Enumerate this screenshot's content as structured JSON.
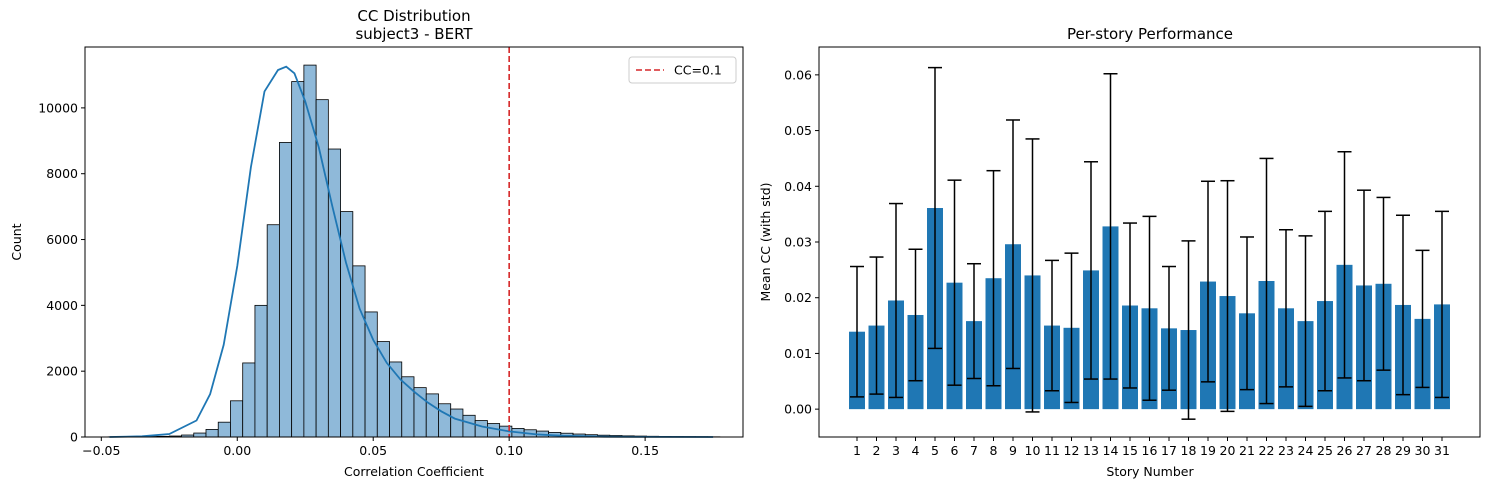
{
  "chart_data": [
    {
      "type": "bar",
      "subtype": "histogram",
      "title": "CC Distribution",
      "subtitle": "subject3 - BERT",
      "xlabel": "Correlation Coefficient",
      "ylabel": "Count",
      "xlim": [
        -0.056,
        0.186
      ],
      "ylim": [
        0,
        11850
      ],
      "xticks": [
        -0.05,
        0.0,
        0.05,
        0.1,
        0.15
      ],
      "xtick_labels": [
        "−0.05",
        "0.00",
        "0.05",
        "0.10",
        "0.15"
      ],
      "yticks": [
        0,
        2000,
        4000,
        6000,
        8000,
        10000
      ],
      "ytick_labels": [
        "0",
        "2000",
        "4000",
        "6000",
        "8000",
        "10000"
      ],
      "bin_start": -0.0475,
      "bin_width": 0.0045,
      "counts": [
        5,
        8,
        10,
        15,
        20,
        30,
        60,
        120,
        230,
        450,
        1100,
        2250,
        4000,
        6450,
        8950,
        10800,
        11300,
        10250,
        8750,
        6850,
        5200,
        3800,
        2900,
        2280,
        1830,
        1500,
        1310,
        1010,
        850,
        660,
        500,
        410,
        330,
        260,
        220,
        180,
        140,
        115,
        90,
        70,
        55,
        45,
        35,
        28,
        22,
        17,
        13,
        10,
        8,
        6
      ],
      "kde_x": [
        -0.047,
        -0.035,
        -0.025,
        -0.015,
        -0.01,
        -0.005,
        0.0,
        0.005,
        0.01,
        0.015,
        0.018,
        0.021,
        0.025,
        0.03,
        0.035,
        0.04,
        0.045,
        0.05,
        0.055,
        0.06,
        0.065,
        0.07,
        0.075,
        0.08,
        0.09,
        0.1,
        0.11,
        0.12,
        0.135,
        0.15,
        0.175
      ],
      "kde_y": [
        0,
        20,
        90,
        500,
        1300,
        2800,
        5200,
        8200,
        10500,
        11150,
        11250,
        11050,
        10200,
        8800,
        7000,
        5300,
        3900,
        2950,
        2250,
        1750,
        1380,
        1050,
        780,
        560,
        320,
        170,
        80,
        35,
        10,
        4,
        0
      ],
      "vline": {
        "x": 0.1,
        "label": "CC=0.1",
        "color": "#d62728"
      },
      "bar_color": "#8fb9d9",
      "kde_color": "#1f77b4",
      "legend_position": "top-right"
    },
    {
      "type": "bar",
      "title": "Per-story Performance",
      "xlabel": "Story Number",
      "ylabel": "Mean CC (with std)",
      "ylim": [
        -0.005,
        0.065
      ],
      "yticks": [
        0.0,
        0.01,
        0.02,
        0.03,
        0.04,
        0.05,
        0.06
      ],
      "ytick_labels": [
        "0.00",
        "0.01",
        "0.02",
        "0.03",
        "0.04",
        "0.05",
        "0.06"
      ],
      "categories": [
        "1",
        "2",
        "3",
        "4",
        "5",
        "6",
        "7",
        "8",
        "9",
        "10",
        "11",
        "12",
        "13",
        "14",
        "15",
        "16",
        "17",
        "18",
        "19",
        "20",
        "21",
        "22",
        "23",
        "24",
        "25",
        "26",
        "27",
        "28",
        "29",
        "30",
        "31"
      ],
      "values": [
        0.0139,
        0.015,
        0.0195,
        0.0169,
        0.0361,
        0.0227,
        0.0158,
        0.0235,
        0.0296,
        0.024,
        0.015,
        0.0146,
        0.0249,
        0.0328,
        0.0186,
        0.0181,
        0.0145,
        0.0142,
        0.0229,
        0.0203,
        0.0172,
        0.023,
        0.0181,
        0.0158,
        0.0194,
        0.0259,
        0.0222,
        0.0225,
        0.0187,
        0.0162,
        0.0188
      ],
      "errors": [
        0.0117,
        0.0123,
        0.0174,
        0.0118,
        0.0252,
        0.0184,
        0.0103,
        0.0193,
        0.0223,
        0.0245,
        0.0117,
        0.0134,
        0.0195,
        0.0274,
        0.0148,
        0.0165,
        0.0111,
        0.016,
        0.018,
        0.0207,
        0.0137,
        0.022,
        0.0141,
        0.0153,
        0.0161,
        0.0203,
        0.0171,
        0.0155,
        0.0161,
        0.0123,
        0.0167
      ],
      "bar_color": "#1f77b4"
    }
  ]
}
